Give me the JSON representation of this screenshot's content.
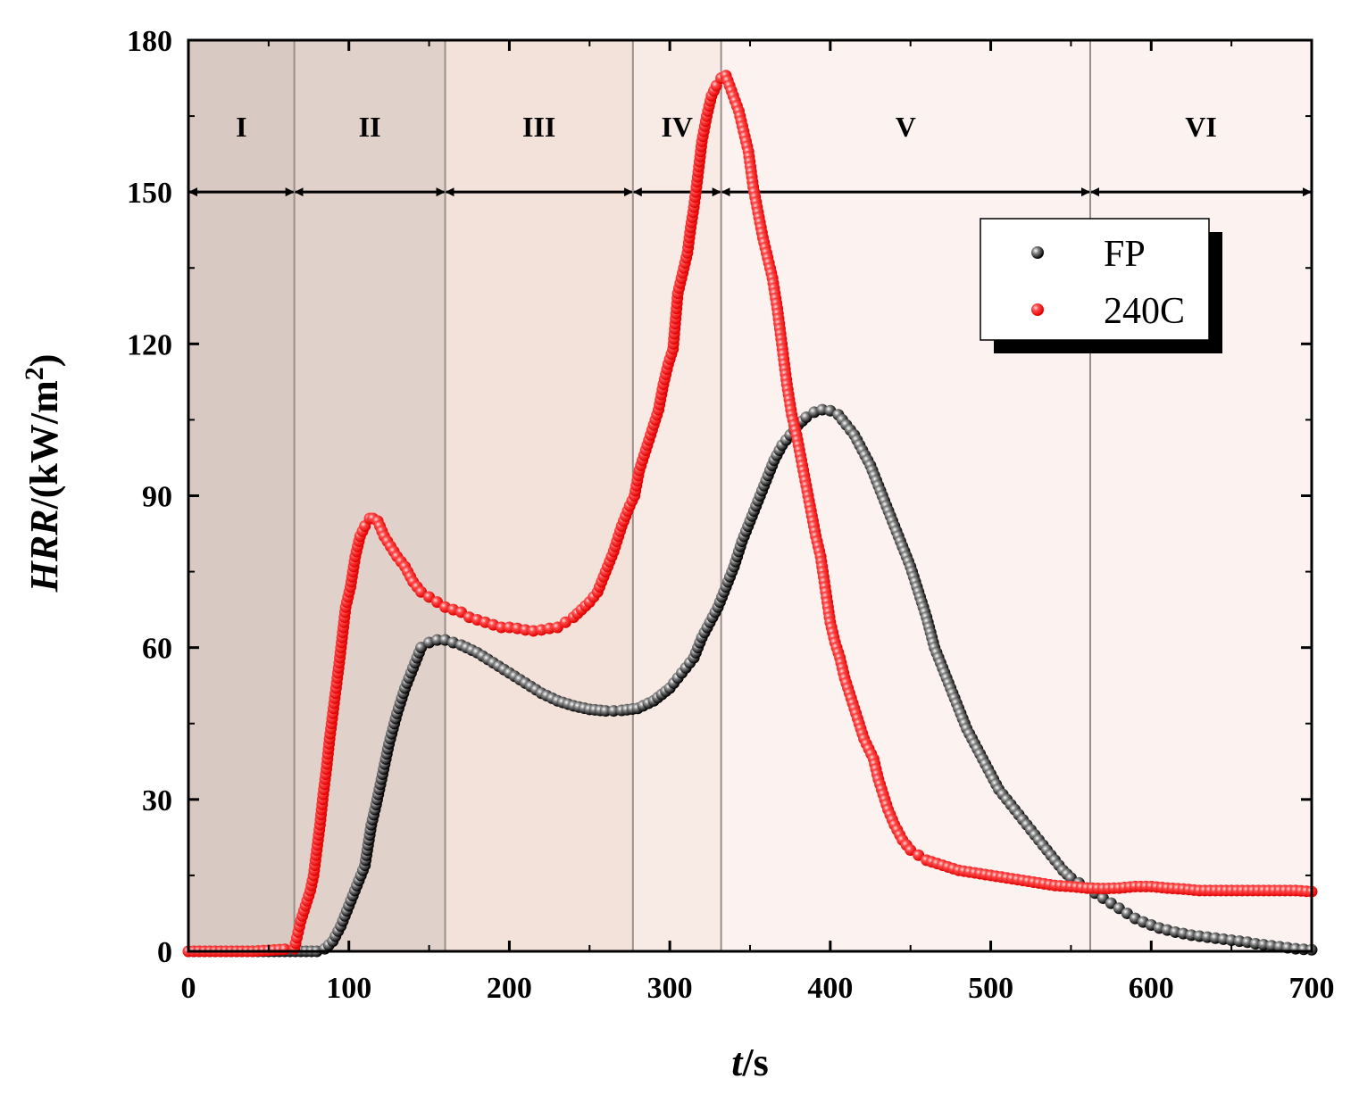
{
  "chart_data": {
    "type": "scatter",
    "title": "",
    "xlabel": {
      "italic": "t",
      "rest": "/s"
    },
    "ylabel": {
      "italic": "HRR",
      "rest": "/(kW/m",
      "sup": "2",
      "close": ")"
    },
    "xlim": [
      0,
      700
    ],
    "ylim": [
      0,
      180
    ],
    "x_ticks": [
      0,
      100,
      200,
      300,
      400,
      500,
      600,
      700
    ],
    "y_ticks": [
      0,
      30,
      60,
      90,
      120,
      150,
      180
    ],
    "grid": false,
    "legend": {
      "location": "top-right",
      "entries": [
        "FP",
        "240C"
      ]
    },
    "stage_arrow_level": 150,
    "stages": [
      {
        "label": "I",
        "start": 0,
        "end": 66,
        "color": "#d8c9c3"
      },
      {
        "label": "II",
        "start": 66,
        "end": 160,
        "color": "#e0d1ca"
      },
      {
        "label": "III",
        "start": 160,
        "end": 277,
        "color": "#f3e2da"
      },
      {
        "label": "IV",
        "start": 277,
        "end": 332,
        "color": "#f8ebe5"
      },
      {
        "label": "V",
        "start": 332,
        "end": 562,
        "color": "#fcf3f0"
      },
      {
        "label": "VI",
        "start": 562,
        "end": 700,
        "color": "#fcf3f0"
      }
    ],
    "series": [
      {
        "name": "FP",
        "color": "#000000",
        "marker": "sphere",
        "points": [
          [
            0,
            0
          ],
          [
            20,
            0
          ],
          [
            40,
            0
          ],
          [
            60,
            0
          ],
          [
            70,
            0
          ],
          [
            80,
            0
          ],
          [
            85,
            0.5
          ],
          [
            90,
            2
          ],
          [
            95,
            5
          ],
          [
            100,
            9
          ],
          [
            105,
            13
          ],
          [
            110,
            17
          ],
          [
            114,
            25
          ],
          [
            117,
            29
          ],
          [
            119,
            32
          ],
          [
            125,
            41
          ],
          [
            130,
            47
          ],
          [
            135,
            52
          ],
          [
            140,
            56
          ],
          [
            145,
            60
          ],
          [
            150,
            61
          ],
          [
            155,
            61.5
          ],
          [
            160,
            61.5
          ],
          [
            165,
            61
          ],
          [
            170,
            60.5
          ],
          [
            180,
            59
          ],
          [
            190,
            57
          ],
          [
            200,
            55
          ],
          [
            210,
            53
          ],
          [
            220,
            51
          ],
          [
            230,
            49.5
          ],
          [
            240,
            48.5
          ],
          [
            250,
            47.8
          ],
          [
            260,
            47.5
          ],
          [
            265,
            47.5
          ],
          [
            270,
            47.6
          ],
          [
            280,
            48
          ],
          [
            290,
            49.5
          ],
          [
            300,
            52
          ],
          [
            305,
            54
          ],
          [
            310,
            56
          ],
          [
            315,
            58
          ],
          [
            320,
            62
          ],
          [
            325,
            65
          ],
          [
            330,
            68
          ],
          [
            335,
            72
          ],
          [
            340,
            76
          ],
          [
            345,
            81
          ],
          [
            350,
            85
          ],
          [
            355,
            89
          ],
          [
            360,
            93
          ],
          [
            365,
            97
          ],
          [
            370,
            100
          ],
          [
            375,
            102
          ],
          [
            380,
            104
          ],
          [
            385,
            105.5
          ],
          [
            390,
            106.5
          ],
          [
            395,
            107
          ],
          [
            400,
            106.8
          ],
          [
            405,
            106
          ],
          [
            410,
            104
          ],
          [
            415,
            102
          ],
          [
            420,
            99
          ],
          [
            425,
            96
          ],
          [
            430,
            92
          ],
          [
            435,
            88
          ],
          [
            440,
            84
          ],
          [
            445,
            80
          ],
          [
            450,
            76
          ],
          [
            455,
            71
          ],
          [
            460,
            66
          ],
          [
            465,
            60
          ],
          [
            470,
            56
          ],
          [
            475,
            52
          ],
          [
            480,
            48
          ],
          [
            485,
            44
          ],
          [
            490,
            41
          ],
          [
            495,
            38
          ],
          [
            500,
            35
          ],
          [
            505,
            32
          ],
          [
            510,
            30
          ],
          [
            515,
            28
          ],
          [
            520,
            26
          ],
          [
            525,
            24
          ],
          [
            530,
            22
          ],
          [
            535,
            20
          ],
          [
            540,
            18
          ],
          [
            545,
            16
          ],
          [
            550,
            14.5
          ],
          [
            555,
            13.5
          ],
          [
            560,
            12.5
          ],
          [
            565,
            11.5
          ],
          [
            570,
            10.5
          ],
          [
            575,
            9.5
          ],
          [
            580,
            8.5
          ],
          [
            585,
            7.5
          ],
          [
            590,
            6.5
          ],
          [
            595,
            5.8
          ],
          [
            600,
            5.2
          ],
          [
            605,
            4.6
          ],
          [
            610,
            4.2
          ],
          [
            615,
            3.8
          ],
          [
            620,
            3.5
          ],
          [
            625,
            3.2
          ],
          [
            630,
            3
          ],
          [
            635,
            2.8
          ],
          [
            640,
            2.6
          ],
          [
            645,
            2.4
          ],
          [
            650,
            2.2
          ],
          [
            655,
            2
          ],
          [
            660,
            1.8
          ],
          [
            665,
            1.5
          ],
          [
            670,
            1.3
          ],
          [
            675,
            1.1
          ],
          [
            680,
            0.9
          ],
          [
            685,
            0.7
          ],
          [
            690,
            0.5
          ],
          [
            695,
            0.4
          ],
          [
            700,
            0.3
          ]
        ]
      },
      {
        "name": "240C",
        "color": "#ff0000",
        "marker": "sphere",
        "points": [
          [
            0,
            0
          ],
          [
            10,
            0
          ],
          [
            20,
            0
          ],
          [
            30,
            0
          ],
          [
            40,
            0
          ],
          [
            50,
            0.2
          ],
          [
            60,
            0.4
          ],
          [
            66,
            0.5
          ],
          [
            70,
            6
          ],
          [
            73,
            9
          ],
          [
            76,
            12
          ],
          [
            78,
            15
          ],
          [
            82,
            25
          ],
          [
            84,
            31
          ],
          [
            86,
            36
          ],
          [
            88,
            42
          ],
          [
            94,
            57
          ],
          [
            98,
            68
          ],
          [
            101,
            72
          ],
          [
            104,
            78
          ],
          [
            107,
            82
          ],
          [
            110,
            84
          ],
          [
            113,
            85.5
          ],
          [
            115,
            85.5
          ],
          [
            118,
            85
          ],
          [
            122,
            82
          ],
          [
            126,
            80
          ],
          [
            130,
            78
          ],
          [
            135,
            76
          ],
          [
            140,
            73
          ],
          [
            145,
            71
          ],
          [
            150,
            70
          ],
          [
            155,
            69
          ],
          [
            160,
            68
          ],
          [
            165,
            67.5
          ],
          [
            170,
            67
          ],
          [
            175,
            66
          ],
          [
            180,
            65.5
          ],
          [
            185,
            65
          ],
          [
            190,
            64.5
          ],
          [
            195,
            64
          ],
          [
            200,
            64
          ],
          [
            205,
            63.8
          ],
          [
            210,
            63.5
          ],
          [
            215,
            63.3
          ],
          [
            220,
            63.5
          ],
          [
            225,
            63.8
          ],
          [
            230,
            64
          ],
          [
            235,
            65
          ],
          [
            240,
            66
          ],
          [
            245,
            67.5
          ],
          [
            250,
            69
          ],
          [
            255,
            71
          ],
          [
            260,
            75
          ],
          [
            265,
            79
          ],
          [
            270,
            84
          ],
          [
            275,
            88
          ],
          [
            278,
            90
          ],
          [
            281,
            95
          ],
          [
            287,
            101
          ],
          [
            290,
            104
          ],
          [
            293,
            107
          ],
          [
            296,
            112
          ],
          [
            299,
            116
          ],
          [
            302,
            119
          ],
          [
            305,
            130
          ],
          [
            308,
            134
          ],
          [
            311,
            138
          ],
          [
            313,
            143
          ],
          [
            315,
            147
          ],
          [
            317,
            152
          ],
          [
            320,
            160
          ],
          [
            323,
            165
          ],
          [
            326,
            169
          ],
          [
            329,
            171
          ],
          [
            332,
            172.5
          ],
          [
            335,
            173
          ],
          [
            343,
            166
          ],
          [
            346,
            162
          ],
          [
            349,
            158
          ],
          [
            352,
            151
          ],
          [
            355,
            146
          ],
          [
            358,
            141
          ],
          [
            361,
            137
          ],
          [
            364,
            133
          ],
          [
            367,
            127
          ],
          [
            373,
            112
          ],
          [
            376,
            106
          ],
          [
            379,
            102
          ],
          [
            382,
            97
          ],
          [
            385,
            92
          ],
          [
            388,
            87
          ],
          [
            391,
            82
          ],
          [
            394,
            78
          ],
          [
            400,
            65
          ],
          [
            403,
            61
          ],
          [
            406,
            58
          ],
          [
            409,
            54
          ],
          [
            412,
            51
          ],
          [
            415,
            48
          ],
          [
            418,
            45
          ],
          [
            421,
            42
          ],
          [
            424,
            40
          ],
          [
            427,
            38
          ],
          [
            430,
            34
          ],
          [
            433,
            31
          ],
          [
            436,
            28
          ],
          [
            440,
            25
          ],
          [
            445,
            22
          ],
          [
            450,
            20
          ],
          [
            455,
            19
          ],
          [
            460,
            18
          ],
          [
            470,
            17
          ],
          [
            480,
            16
          ],
          [
            490,
            15.5
          ],
          [
            500,
            15
          ],
          [
            510,
            14.5
          ],
          [
            520,
            14
          ],
          [
            530,
            13.5
          ],
          [
            540,
            13
          ],
          [
            550,
            12.8
          ],
          [
            560,
            12.5
          ],
          [
            570,
            12.4
          ],
          [
            580,
            12.5
          ],
          [
            590,
            12.8
          ],
          [
            600,
            12.8
          ],
          [
            610,
            12.5
          ],
          [
            620,
            12.3
          ],
          [
            630,
            12
          ],
          [
            640,
            12
          ],
          [
            650,
            12
          ],
          [
            660,
            12
          ],
          [
            670,
            12
          ],
          [
            680,
            12
          ],
          [
            690,
            12
          ],
          [
            700,
            11.8
          ]
        ]
      }
    ]
  }
}
